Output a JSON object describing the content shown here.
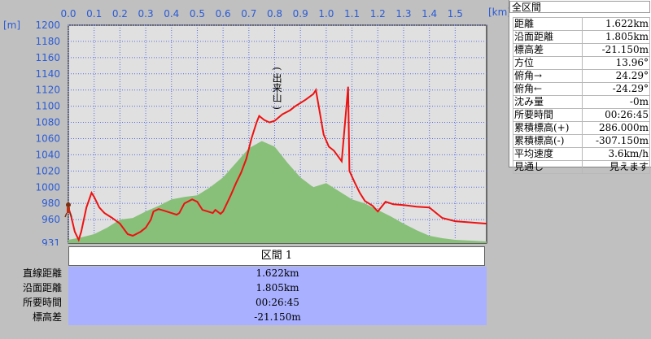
{
  "chart_data": {
    "type": "area",
    "x_axis": {
      "unit_label": "[km]",
      "ticks": [
        "0.0",
        "0.1",
        "0.2",
        "0.3",
        "0.4",
        "0.5",
        "0.6",
        "0.7",
        "0.8",
        "0.9",
        "1.0",
        "1.1",
        "1.2",
        "1.3",
        "1.4",
        "1.5"
      ],
      "range": [
        0,
        1.622
      ]
    },
    "y_axis": {
      "unit_label": "[m]",
      "ticks": [
        "1200",
        "1180",
        "1160",
        "1140",
        "1120",
        "1100",
        "1080",
        "1060",
        "1040",
        "1020",
        "1000",
        "980",
        "960",
        "931"
      ],
      "range": [
        931,
        1200
      ]
    },
    "grid": true,
    "colors": {
      "terrain_fill": "#88c07a",
      "route_line": "#ee1111",
      "plot_bg": "#e0e0e0",
      "grid": "#5a6ee0",
      "axis_text": "#2a5bd6"
    },
    "annotations": [
      {
        "text": "(出来山)",
        "x": 0.81,
        "y": 1090,
        "vertical": true
      }
    ],
    "series": [
      {
        "kind": "route-elevation",
        "points": [
          [
            0,
            975
          ],
          [
            0.01,
            965
          ],
          [
            0.025,
            945
          ],
          [
            0.04,
            935
          ],
          [
            0.05,
            945
          ],
          [
            0.07,
            975
          ],
          [
            0.09,
            993
          ],
          [
            0.1,
            988
          ],
          [
            0.12,
            975
          ],
          [
            0.14,
            968
          ],
          [
            0.17,
            962
          ],
          [
            0.2,
            955
          ],
          [
            0.23,
            942
          ],
          [
            0.25,
            940
          ],
          [
            0.28,
            945
          ],
          [
            0.3,
            950
          ],
          [
            0.32,
            960
          ],
          [
            0.33,
            970
          ],
          [
            0.35,
            973
          ],
          [
            0.37,
            971
          ],
          [
            0.4,
            968
          ],
          [
            0.42,
            966
          ],
          [
            0.43,
            968
          ],
          [
            0.45,
            980
          ],
          [
            0.48,
            985
          ],
          [
            0.5,
            982
          ],
          [
            0.52,
            972
          ],
          [
            0.54,
            970
          ],
          [
            0.56,
            968
          ],
          [
            0.57,
            972
          ],
          [
            0.59,
            967
          ],
          [
            0.6,
            970
          ],
          [
            0.63,
            990
          ],
          [
            0.65,
            1005
          ],
          [
            0.67,
            1018
          ],
          [
            0.69,
            1035
          ],
          [
            0.71,
            1060
          ],
          [
            0.73,
            1080
          ],
          [
            0.74,
            1088
          ],
          [
            0.76,
            1083
          ],
          [
            0.78,
            1080
          ],
          [
            0.8,
            1082
          ],
          [
            0.83,
            1090
          ],
          [
            0.86,
            1095
          ],
          [
            0.88,
            1100
          ],
          [
            0.92,
            1108
          ],
          [
            0.95,
            1115
          ],
          [
            0.96,
            1120
          ],
          [
            1.085,
            1124
          ],
          [
            0.99,
            1065
          ],
          [
            1.01,
            1050
          ],
          [
            1.03,
            1045
          ],
          [
            1.06,
            1032
          ],
          [
            1.09,
            1020
          ],
          [
            1.11,
            1006
          ],
          [
            1.13,
            993
          ],
          [
            1.15,
            983
          ],
          [
            1.18,
            977
          ],
          [
            1.2,
            970
          ],
          [
            1.23,
            982
          ],
          [
            1.26,
            979
          ],
          [
            1.3,
            978
          ],
          [
            1.35,
            976
          ],
          [
            1.4,
            975
          ],
          [
            1.45,
            962
          ],
          [
            1.5,
            958
          ],
          [
            1.622,
            955
          ]
        ]
      },
      {
        "kind": "terrain-profile",
        "points": [
          [
            0,
            935
          ],
          [
            0.05,
            938
          ],
          [
            0.1,
            942
          ],
          [
            0.15,
            950
          ],
          [
            0.2,
            960
          ],
          [
            0.25,
            962
          ],
          [
            0.3,
            970
          ],
          [
            0.35,
            977
          ],
          [
            0.4,
            985
          ],
          [
            0.45,
            988
          ],
          [
            0.5,
            990
          ],
          [
            0.55,
            1000
          ],
          [
            0.6,
            1012
          ],
          [
            0.65,
            1030
          ],
          [
            0.7,
            1048
          ],
          [
            0.75,
            1057
          ],
          [
            0.8,
            1050
          ],
          [
            0.85,
            1030
          ],
          [
            0.9,
            1012
          ],
          [
            0.95,
            1000
          ],
          [
            1.0,
            1005
          ],
          [
            1.05,
            995
          ],
          [
            1.1,
            985
          ],
          [
            1.15,
            980
          ],
          [
            1.2,
            972
          ],
          [
            1.25,
            964
          ],
          [
            1.3,
            955
          ],
          [
            1.35,
            947
          ],
          [
            1.4,
            940
          ],
          [
            1.45,
            937
          ],
          [
            1.5,
            935
          ],
          [
            1.622,
            933
          ]
        ]
      }
    ]
  },
  "stats": {
    "title": "全区間",
    "rows": [
      {
        "label": "距離",
        "value": "1.622km"
      },
      {
        "label": "沿面距離",
        "value": "1.805km"
      },
      {
        "label": "標高差",
        "value": "-21.150m"
      },
      {
        "label": "方位",
        "value": "13.96°"
      },
      {
        "label": "俯角→",
        "value": "24.29°"
      },
      {
        "label": "俯角←",
        "value": "-24.29°"
      },
      {
        "label": "沈み量",
        "value": "-0m"
      },
      {
        "label": "所要時間",
        "value": "00:26:45"
      },
      {
        "label": "累積標高(+)",
        "value": "286.000m"
      },
      {
        "label": "累積標高(-)",
        "value": "-307.150m"
      },
      {
        "label": "平均速度",
        "value": "3.6km/h"
      },
      {
        "label": "見通し",
        "value": "見えます"
      }
    ]
  },
  "section": {
    "header": "区間 1",
    "rows": [
      {
        "label": "直線距離",
        "value": "1.622km"
      },
      {
        "label": "沿面距離",
        "value": "1.805km"
      },
      {
        "label": "所要時間",
        "value": "00:26:45"
      },
      {
        "label": "標高差",
        "value": "-21.150m"
      }
    ]
  }
}
